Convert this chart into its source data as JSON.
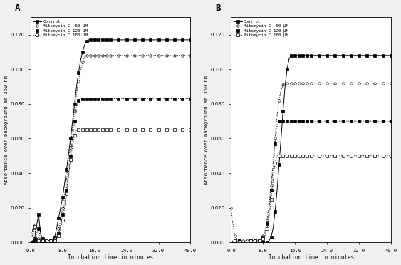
{
  "panel_A": {
    "label": "A",
    "series": {
      "control": {
        "name": "Control",
        "x": [
          0,
          0.5,
          1,
          1.5,
          2,
          2.5,
          3,
          3.5,
          4,
          4.5,
          5,
          5.5,
          6,
          6.5,
          7,
          7.5,
          8,
          8.5,
          9,
          9.5,
          10,
          10.5,
          11,
          11.5,
          12,
          12.5,
          13,
          13.5,
          14,
          14.5,
          15,
          15.5,
          16,
          16.5,
          17,
          17.5,
          18,
          18.5,
          19,
          19.5,
          20,
          21,
          22,
          23,
          24,
          25,
          26,
          27,
          28,
          29,
          30,
          31,
          32,
          33,
          34,
          35,
          36,
          37,
          38,
          39,
          40
        ],
        "y": [
          0.0,
          0.001,
          0.002,
          0.01,
          0.016,
          0.005,
          0.002,
          0.001,
          0.0,
          0.001,
          0.001,
          0.002,
          0.003,
          0.008,
          0.014,
          0.02,
          0.026,
          0.034,
          0.042,
          0.051,
          0.06,
          0.07,
          0.08,
          0.09,
          0.098,
          0.105,
          0.11,
          0.114,
          0.116,
          0.117,
          0.117,
          0.117,
          0.117,
          0.117,
          0.117,
          0.117,
          0.117,
          0.117,
          0.117,
          0.117,
          0.117,
          0.117,
          0.117,
          0.117,
          0.117,
          0.117,
          0.117,
          0.117,
          0.117,
          0.117,
          0.117,
          0.117,
          0.117,
          0.117,
          0.117,
          0.117,
          0.117,
          0.117,
          0.117,
          0.117,
          0.117
        ],
        "linestyle": "-",
        "marker": "s",
        "markerfacecolor": "black",
        "color": "black"
      },
      "mmc60": {
        "name": "Mitomycin C  60 μM",
        "x": [
          0,
          0.5,
          1,
          1.5,
          2,
          2.5,
          3,
          3.5,
          4,
          4.5,
          5,
          5.5,
          6,
          6.5,
          7,
          7.5,
          8,
          8.5,
          9,
          9.5,
          10,
          10.5,
          11,
          11.5,
          12,
          12.5,
          13,
          13.5,
          14,
          14.5,
          15,
          15.5,
          16,
          16.5,
          17,
          17.5,
          18,
          18.5,
          19,
          19.5,
          20,
          21,
          22,
          23,
          24,
          25,
          26,
          27,
          28,
          29,
          30,
          31,
          32,
          33,
          34,
          35,
          36,
          37,
          38,
          39,
          40
        ],
        "y": [
          0.007,
          0.004,
          0.01,
          0.003,
          0.002,
          0.001,
          0.001,
          0.001,
          0.001,
          0.001,
          0.001,
          0.001,
          0.002,
          0.004,
          0.008,
          0.013,
          0.02,
          0.027,
          0.036,
          0.046,
          0.056,
          0.066,
          0.076,
          0.086,
          0.093,
          0.099,
          0.104,
          0.107,
          0.108,
          0.108,
          0.108,
          0.108,
          0.108,
          0.108,
          0.108,
          0.108,
          0.108,
          0.108,
          0.108,
          0.108,
          0.108,
          0.108,
          0.108,
          0.108,
          0.108,
          0.108,
          0.108,
          0.108,
          0.108,
          0.108,
          0.108,
          0.108,
          0.108,
          0.108,
          0.108,
          0.108,
          0.108,
          0.108,
          0.108,
          0.108,
          0.108
        ],
        "linestyle": ":",
        "marker": "o",
        "markerfacecolor": "white",
        "color": "black"
      },
      "mmc120": {
        "name": "Mitomycin C 120 μM",
        "x": [
          0,
          0.5,
          1,
          1.5,
          2,
          2.5,
          3,
          3.5,
          4,
          4.5,
          5,
          5.5,
          6,
          6.5,
          7,
          7.5,
          8,
          8.5,
          9,
          9.5,
          10,
          10.5,
          11,
          11.5,
          12,
          12.5,
          13,
          13.5,
          14,
          14.5,
          15,
          15.5,
          16,
          16.5,
          17,
          17.5,
          18,
          18.5,
          19,
          19.5,
          20,
          21,
          22,
          23,
          24,
          25,
          26,
          27,
          28,
          29,
          30,
          31,
          32,
          33,
          34,
          35,
          36,
          37,
          38,
          39,
          40
        ],
        "y": [
          0.0,
          0.0,
          0.001,
          0.005,
          0.008,
          0.002,
          0.001,
          0.001,
          0.001,
          0.001,
          0.001,
          0.001,
          0.001,
          0.002,
          0.005,
          0.01,
          0.016,
          0.023,
          0.03,
          0.04,
          0.05,
          0.06,
          0.07,
          0.078,
          0.082,
          0.083,
          0.083,
          0.083,
          0.083,
          0.083,
          0.083,
          0.083,
          0.083,
          0.083,
          0.083,
          0.083,
          0.083,
          0.083,
          0.083,
          0.083,
          0.083,
          0.083,
          0.083,
          0.083,
          0.083,
          0.083,
          0.083,
          0.083,
          0.083,
          0.083,
          0.083,
          0.083,
          0.083,
          0.083,
          0.083,
          0.083,
          0.083,
          0.083,
          0.083,
          0.083,
          0.083
        ],
        "linestyle": ":",
        "marker": "s",
        "markerfacecolor": "black",
        "color": "black"
      },
      "mmc180": {
        "name": "Mitomycin C 180 μM",
        "x": [
          0,
          0.5,
          1,
          1.5,
          2,
          2.5,
          3,
          3.5,
          4,
          4.5,
          5,
          5.5,
          6,
          6.5,
          7,
          7.5,
          8,
          8.5,
          9,
          9.5,
          10,
          10.5,
          11,
          11.5,
          12,
          12.5,
          13,
          13.5,
          14,
          14.5,
          15,
          15.5,
          16,
          16.5,
          17,
          17.5,
          18,
          18.5,
          19,
          19.5,
          20,
          21,
          22,
          23,
          24,
          25,
          26,
          27,
          28,
          29,
          30,
          31,
          32,
          33,
          34,
          35,
          36,
          37,
          38,
          39,
          40
        ],
        "y": [
          0.007,
          0.003,
          0.009,
          0.002,
          0.001,
          0.001,
          0.001,
          0.001,
          0.001,
          0.001,
          0.001,
          0.001,
          0.001,
          0.002,
          0.004,
          0.008,
          0.013,
          0.02,
          0.028,
          0.038,
          0.048,
          0.056,
          0.062,
          0.065,
          0.065,
          0.065,
          0.065,
          0.065,
          0.065,
          0.065,
          0.065,
          0.065,
          0.065,
          0.065,
          0.065,
          0.065,
          0.065,
          0.065,
          0.065,
          0.065,
          0.065,
          0.065,
          0.065,
          0.065,
          0.065,
          0.065,
          0.065,
          0.065,
          0.065,
          0.065,
          0.065,
          0.065,
          0.065,
          0.065,
          0.065,
          0.065,
          0.065,
          0.065,
          0.065,
          0.065,
          0.065
        ],
        "linestyle": ":",
        "marker": "s",
        "markerfacecolor": "white",
        "color": "black"
      }
    },
    "ylabel": "Absorbance over background at 350 nm",
    "xlabel": "Incubation time in minutes",
    "ylim": [
      0,
      0.13
    ],
    "xlim": [
      0,
      40
    ],
    "yticks": [
      0.0,
      0.02,
      0.04,
      0.06,
      0.08,
      0.1,
      0.12
    ],
    "xticks": [
      0.0,
      8.0,
      16.0,
      24.0,
      32.0,
      40.0
    ],
    "xticklabels": [
      "0.0",
      "8.0",
      "16.0",
      "24.0",
      "32.0",
      "40.0"
    ]
  },
  "panel_B": {
    "label": "B",
    "series": {
      "control": {
        "name": "Control",
        "x": [
          0,
          0.5,
          1,
          1.5,
          2,
          2.5,
          3,
          3.5,
          4,
          4.5,
          5,
          5.5,
          6,
          6.5,
          7,
          7.5,
          8,
          8.5,
          9,
          9.5,
          10,
          10.5,
          11,
          11.5,
          12,
          12.5,
          13,
          13.5,
          14,
          14.5,
          15,
          15.5,
          16,
          16.5,
          17,
          17.5,
          18,
          18.5,
          19,
          19.5,
          20,
          21,
          22,
          23,
          24,
          25,
          26,
          27,
          28,
          29,
          30,
          31,
          32,
          33,
          34,
          35,
          36,
          37,
          38,
          39,
          40
        ],
        "y": [
          0.0,
          0.0,
          0.0,
          0.0,
          0.0,
          0.0,
          0.0,
          0.0,
          0.0,
          0.0,
          0.0,
          0.0,
          0.0,
          0.0,
          0.0,
          0.0,
          0.0,
          0.0,
          0.0,
          0.001,
          0.003,
          0.008,
          0.018,
          0.03,
          0.045,
          0.06,
          0.076,
          0.09,
          0.1,
          0.106,
          0.108,
          0.108,
          0.108,
          0.108,
          0.108,
          0.108,
          0.108,
          0.108,
          0.108,
          0.108,
          0.108,
          0.108,
          0.108,
          0.108,
          0.108,
          0.108,
          0.108,
          0.108,
          0.108,
          0.108,
          0.108,
          0.108,
          0.108,
          0.108,
          0.108,
          0.108,
          0.108,
          0.108,
          0.108,
          0.108,
          0.108
        ],
        "linestyle": "-",
        "marker": "s",
        "markerfacecolor": "black",
        "color": "black"
      },
      "mmc60": {
        "name": "Mitomycin C  60 μM",
        "x": [
          0,
          0.5,
          1,
          1.5,
          2,
          2.5,
          3,
          3.5,
          4,
          4.5,
          5,
          5.5,
          6,
          6.5,
          7,
          7.5,
          8,
          8.5,
          9,
          9.5,
          10,
          10.5,
          11,
          11.5,
          12,
          12.5,
          13,
          13.5,
          14,
          14.5,
          15,
          15.5,
          16,
          16.5,
          17,
          17.5,
          18,
          18.5,
          19,
          19.5,
          20,
          21,
          22,
          23,
          24,
          25,
          26,
          27,
          28,
          29,
          30,
          31,
          32,
          33,
          34,
          35,
          36,
          37,
          38,
          39,
          40
        ],
        "y": [
          0.02,
          0.01,
          0.004,
          0.002,
          0.001,
          0.001,
          0.001,
          0.001,
          0.001,
          0.001,
          0.001,
          0.001,
          0.001,
          0.001,
          0.001,
          0.002,
          0.004,
          0.007,
          0.013,
          0.022,
          0.033,
          0.046,
          0.06,
          0.073,
          0.082,
          0.088,
          0.091,
          0.092,
          0.092,
          0.092,
          0.092,
          0.092,
          0.092,
          0.092,
          0.092,
          0.092,
          0.092,
          0.092,
          0.092,
          0.092,
          0.092,
          0.092,
          0.092,
          0.092,
          0.092,
          0.092,
          0.092,
          0.092,
          0.092,
          0.092,
          0.092,
          0.092,
          0.092,
          0.092,
          0.092,
          0.092,
          0.092,
          0.092,
          0.092,
          0.092,
          0.092
        ],
        "linestyle": ":",
        "marker": "o",
        "markerfacecolor": "white",
        "color": "black"
      },
      "mmc120": {
        "name": "Mitomycin C 120 μM",
        "x": [
          0,
          0.5,
          1,
          1.5,
          2,
          2.5,
          3,
          3.5,
          4,
          4.5,
          5,
          5.5,
          6,
          6.5,
          7,
          7.5,
          8,
          8.5,
          9,
          9.5,
          10,
          10.5,
          11,
          11.5,
          12,
          12.5,
          13,
          13.5,
          14,
          14.5,
          15,
          15.5,
          16,
          16.5,
          17,
          17.5,
          18,
          18.5,
          19,
          19.5,
          20,
          21,
          22,
          23,
          24,
          25,
          26,
          27,
          28,
          29,
          30,
          31,
          32,
          33,
          34,
          35,
          36,
          37,
          38,
          39,
          40
        ],
        "y": [
          0.0,
          0.001,
          0.001,
          0.001,
          0.001,
          0.0,
          0.0,
          0.0,
          0.0,
          0.001,
          0.001,
          0.001,
          0.001,
          0.001,
          0.001,
          0.002,
          0.003,
          0.006,
          0.011,
          0.019,
          0.03,
          0.043,
          0.057,
          0.067,
          0.07,
          0.07,
          0.07,
          0.07,
          0.07,
          0.07,
          0.07,
          0.07,
          0.07,
          0.07,
          0.07,
          0.07,
          0.07,
          0.07,
          0.07,
          0.07,
          0.07,
          0.07,
          0.07,
          0.07,
          0.07,
          0.07,
          0.07,
          0.07,
          0.07,
          0.07,
          0.07,
          0.07,
          0.07,
          0.07,
          0.07,
          0.07,
          0.07,
          0.07,
          0.07,
          0.07,
          0.07
        ],
        "linestyle": ":",
        "marker": "s",
        "markerfacecolor": "black",
        "color": "black"
      },
      "mmc180": {
        "name": "Mitomycin C 180 μM",
        "x": [
          0,
          0.5,
          1,
          1.5,
          2,
          2.5,
          3,
          3.5,
          4,
          4.5,
          5,
          5.5,
          6,
          6.5,
          7,
          7.5,
          8,
          8.5,
          9,
          9.5,
          10,
          10.5,
          11,
          11.5,
          12,
          12.5,
          13,
          13.5,
          14,
          14.5,
          15,
          15.5,
          16,
          16.5,
          17,
          17.5,
          18,
          18.5,
          19,
          19.5,
          20,
          21,
          22,
          23,
          24,
          25,
          26,
          27,
          28,
          29,
          30,
          31,
          32,
          33,
          34,
          35,
          36,
          37,
          38,
          39,
          40
        ],
        "y": [
          0.0,
          0.001,
          0.001,
          0.001,
          0.0,
          0.0,
          0.0,
          0.0,
          0.0,
          0.0,
          0.001,
          0.001,
          0.001,
          0.001,
          0.001,
          0.001,
          0.002,
          0.004,
          0.008,
          0.015,
          0.025,
          0.036,
          0.046,
          0.05,
          0.05,
          0.05,
          0.05,
          0.05,
          0.05,
          0.05,
          0.05,
          0.05,
          0.05,
          0.05,
          0.05,
          0.05,
          0.05,
          0.05,
          0.05,
          0.05,
          0.05,
          0.05,
          0.05,
          0.05,
          0.05,
          0.05,
          0.05,
          0.05,
          0.05,
          0.05,
          0.05,
          0.05,
          0.05,
          0.05,
          0.05,
          0.05,
          0.05,
          0.05,
          0.05,
          0.05,
          0.05
        ],
        "linestyle": ":",
        "marker": "s",
        "markerfacecolor": "white",
        "color": "black"
      }
    },
    "ylabel": "Absorbance over background at 350 nm",
    "xlabel": "Incubation time in minutes",
    "ylim": [
      0,
      0.13
    ],
    "xlim": [
      0,
      40
    ],
    "yticks": [
      0.0,
      0.02,
      0.04,
      0.06,
      0.08,
      0.1,
      0.12
    ],
    "xticks": [
      0.0,
      8.0,
      16.0,
      24.0,
      32.0,
      40.0
    ],
    "xticklabels": [
      "0.0",
      "8.0",
      "16.0",
      "24.0",
      "32.0",
      "40.0"
    ]
  },
  "legend_entries": [
    {
      "name": "Control",
      "linestyle": "-",
      "marker": "s",
      "markerfacecolor": "black"
    },
    {
      "name": "Mitomycin C  60 μM",
      "linestyle": ":",
      "marker": "o",
      "markerfacecolor": "white"
    },
    {
      "name": "Mitomycin C 120 μM",
      "linestyle": ":",
      "marker": "s",
      "markerfacecolor": "black"
    },
    {
      "name": "Mitomycin C 180 μM",
      "linestyle": ":",
      "marker": "s",
      "markerfacecolor": "white"
    }
  ],
  "figure_bgcolor": "#f0f0f0",
  "axes_bgcolor": "#ffffff"
}
